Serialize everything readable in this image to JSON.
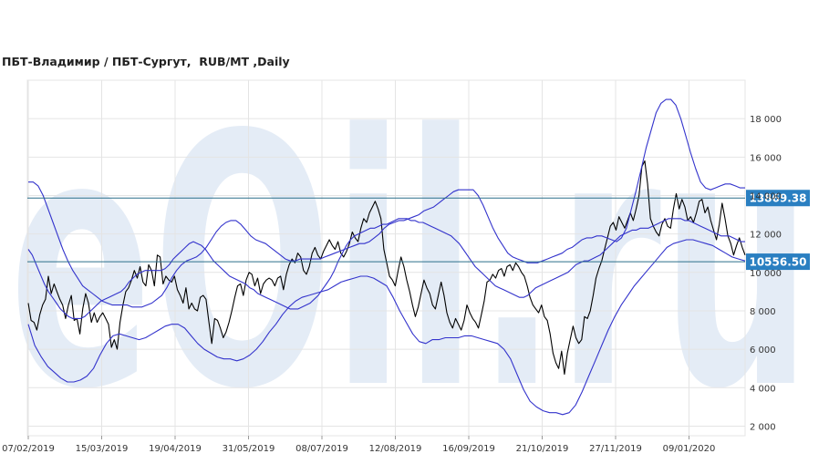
{
  "page": {
    "title": "ПБТ-Владимир / ПБТ-Сургут,  RUB/MT ,Daily",
    "watermark": "eOil.ru"
  },
  "colors": {
    "price": "#000000",
    "bands": "#3333cc",
    "levels": "#2a6f8a",
    "label_bg": "#2a7fc1",
    "grid": "#e4e4e4",
    "watermark": "#e4ecf6"
  },
  "chart_data": {
    "type": "line",
    "title": "ПБТ-Владимир / ПБТ-Сургут,  RUB/MT ,Daily",
    "xlabel": "",
    "ylabel": "",
    "x_ticks": [
      "07/02/2019",
      "15/03/2019",
      "19/04/2019",
      "31/05/2019",
      "08/07/2019",
      "12/08/2019",
      "16/09/2019",
      "21/10/2019",
      "27/11/2019",
      "09/01/2020"
    ],
    "y_ticks": [
      2000,
      4000,
      6000,
      8000,
      10000,
      12000,
      14000,
      16000,
      18000
    ],
    "y_tick_labels": [
      "2 000",
      "4 000",
      "6 000",
      "8 000",
      "10 000",
      "12 000",
      "14 000",
      "16 000",
      "18 000"
    ],
    "ylim": [
      1500,
      20000
    ],
    "grid": true,
    "legend": "none",
    "levels": [
      {
        "value": 13869.38,
        "label": "13869.38"
      },
      {
        "value": 10556.5,
        "label": "10556.50"
      }
    ],
    "series": [
      {
        "role": "price",
        "values": [
          8400,
          7500,
          7400,
          7000,
          7800,
          8300,
          8600,
          9800,
          8900,
          9400,
          9000,
          8600,
          8300,
          7600,
          8300,
          8800,
          7500,
          7600,
          6800,
          8100,
          8900,
          8400,
          7400,
          7900,
          7400,
          7700,
          7900,
          7600,
          7300,
          6100,
          6500,
          6000,
          7400,
          8300,
          9000,
          9200,
          9600,
          10100,
          9700,
          10300,
          9500,
          9300,
          10400,
          10100,
          9300,
          10900,
          10800,
          9400,
          9800,
          9600,
          9500,
          9800,
          9100,
          8800,
          8400,
          9200,
          8100,
          8400,
          8100,
          8000,
          8700,
          8800,
          8600,
          7400,
          6300,
          7600,
          7500,
          7100,
          6600,
          6900,
          7400,
          8000,
          8700,
          9300,
          9400,
          8800,
          9600,
          10000,
          9900,
          9300,
          9700,
          8900,
          9400,
          9600,
          9700,
          9600,
          9300,
          9700,
          9800,
          9100,
          9900,
          10400,
          10700,
          10500,
          11000,
          10800,
          10100,
          9900,
          10300,
          11000,
          11300,
          10900,
          10700,
          11100,
          11400,
          11700,
          11400,
          11200,
          11600,
          11000,
          10800,
          11100,
          11500,
          12100,
          11800,
          11600,
          12300,
          12800,
          12600,
          13100,
          13400,
          13700,
          13300,
          12800,
          11200,
          10500,
          9800,
          9600,
          9300,
          10100,
          10800,
          10300,
          9600,
          9000,
          8300,
          7700,
          8200,
          8900,
          9600,
          9200,
          8900,
          8300,
          8100,
          8800,
          9500,
          8800,
          7900,
          7400,
          7100,
          7600,
          7300,
          7000,
          7500,
          8300,
          7900,
          7600,
          7400,
          7100,
          7800,
          8500,
          9500,
          9600,
          9900,
          9700,
          10100,
          10200,
          9800,
          10300,
          10400,
          10100,
          10500,
          10300,
          10000,
          9800,
          9300,
          8700,
          8300,
          8100,
          7900,
          8300,
          7700,
          7500,
          6800,
          5800,
          5300,
          5000,
          5900,
          4700,
          5800,
          6500,
          7200,
          6600,
          6300,
          6500,
          7700,
          7600,
          8000,
          8800,
          9700,
          10200,
          10600,
          11200,
          11800,
          12400,
          12600,
          12200,
          12900,
          12600,
          12300,
          12700,
          13100,
          12700,
          13300,
          14000,
          15500,
          15800,
          14600,
          12800,
          12400,
          12100,
          11900,
          12500,
          12800,
          12400,
          12300,
          13300,
          14100,
          13300,
          13800,
          13400,
          12700,
          12900,
          12600,
          13100,
          13700,
          13800,
          13100,
          13400,
          12700,
          12200,
          11700,
          12500,
          13600,
          12800,
          11900,
          11500,
          10900,
          11400,
          11800,
          11300,
          10900
        ]
      },
      {
        "role": "upper-band",
        "values": [
          14700,
          14700,
          14500,
          14000,
          13300,
          12600,
          11900,
          11200,
          10600,
          10100,
          9700,
          9300,
          9100,
          8900,
          8700,
          8500,
          8400,
          8300,
          8300,
          8300,
          8300,
          8200,
          8200,
          8200,
          8300,
          8400,
          8600,
          8800,
          9200,
          9700,
          10100,
          10400,
          10600,
          10700,
          10800,
          11000,
          11300,
          11700,
          12100,
          12400,
          12600,
          12700,
          12700,
          12500,
          12200,
          11900,
          11700,
          11600,
          11500,
          11300,
          11100,
          10900,
          10700,
          10600,
          10600,
          10700,
          10700,
          10700,
          10700,
          10700,
          10800,
          10900,
          11000,
          11100,
          11200,
          11300,
          11400,
          11500,
          11500,
          11600,
          11800,
          12000,
          12300,
          12500,
          12600,
          12700,
          12700,
          12800,
          12900,
          13000,
          13200,
          13300,
          13400,
          13600,
          13800,
          14000,
          14200,
          14300,
          14300,
          14300,
          14300,
          14000,
          13500,
          12900,
          12300,
          11800,
          11400,
          11000,
          10800,
          10700,
          10600,
          10500,
          10500,
          10500,
          10600,
          10700,
          10800,
          10900,
          11000,
          11200,
          11300,
          11500,
          11700,
          11800,
          11800,
          11900,
          11900,
          11800,
          11700,
          11600,
          11800,
          12300,
          13300,
          14300,
          15400,
          16500,
          17400,
          18300,
          18800,
          19000,
          19000,
          18700,
          18000,
          17100,
          16200,
          15400,
          14700,
          14400,
          14300,
          14400,
          14500,
          14600,
          14600,
          14500,
          14400,
          14400
        ]
      },
      {
        "role": "middle-band",
        "values": [
          11200,
          10900,
          10400,
          9900,
          9400,
          9000,
          8700,
          8400,
          8100,
          7900,
          7700,
          7600,
          7600,
          7600,
          7700,
          7900,
          8100,
          8300,
          8500,
          8600,
          8700,
          8800,
          8900,
          9000,
          9200,
          9500,
          9700,
          9900,
          10000,
          10100,
          10100,
          10100,
          10100,
          10100,
          10200,
          10400,
          10700,
          10900,
          11100,
          11300,
          11500,
          11600,
          11500,
          11400,
          11200,
          10900,
          10600,
          10400,
          10200,
          10000,
          9800,
          9700,
          9600,
          9500,
          9400,
          9200,
          9100,
          8900,
          8800,
          8700,
          8600,
          8500,
          8400,
          8300,
          8200,
          8100,
          8100,
          8100,
          8200,
          8300,
          8400,
          8600,
          8800,
          9100,
          9400,
          9700,
          10100,
          10600,
          11000,
          11400,
          11700,
          11900,
          12000,
          12100,
          12200,
          12300,
          12300,
          12400,
          12500,
          12500,
          12600,
          12700,
          12800,
          12800,
          12800,
          12700,
          12700,
          12600,
          12600,
          12500,
          12400,
          12300,
          12200,
          12100,
          12000,
          11900,
          11700,
          11500,
          11200,
          10900,
          10600,
          10300,
          10100,
          9900,
          9700,
          9500,
          9300,
          9200,
          9100,
          9000,
          8900,
          8800,
          8700,
          8700,
          8800,
          9000,
          9200,
          9300,
          9400,
          9500,
          9600,
          9700,
          9800,
          9900,
          10000,
          10200,
          10400,
          10500,
          10600,
          10600,
          10700,
          10800,
          10900,
          11100,
          11300,
          11500,
          11700,
          11900,
          12000,
          12100,
          12200,
          12200,
          12300,
          12300,
          12300,
          12400,
          12500,
          12600,
          12700,
          12800,
          12800,
          12800,
          12800,
          12700,
          12700,
          12600,
          12500,
          12400,
          12300,
          12200,
          12100,
          12000,
          11900,
          11900,
          11900,
          11800,
          11700,
          11600,
          11600
        ]
      },
      {
        "role": "lower-band",
        "values": [
          7300,
          6200,
          5600,
          5100,
          4800,
          4500,
          4300,
          4300,
          4400,
          4600,
          5000,
          5700,
          6300,
          6700,
          6800,
          6700,
          6600,
          6500,
          6600,
          6800,
          7000,
          7200,
          7300,
          7300,
          7100,
          6700,
          6300,
          6000,
          5800,
          5600,
          5500,
          5500,
          5400,
          5500,
          5700,
          6000,
          6400,
          6900,
          7300,
          7800,
          8200,
          8500,
          8700,
          8800,
          8900,
          9000,
          9100,
          9300,
          9500,
          9600,
          9700,
          9800,
          9800,
          9700,
          9500,
          9300,
          8700,
          8000,
          7400,
          6800,
          6400,
          6300,
          6500,
          6500,
          6600,
          6600,
          6600,
          6700,
          6700,
          6600,
          6500,
          6400,
          6300,
          6000,
          5500,
          4700,
          3900,
          3300,
          3000,
          2800,
          2700,
          2700,
          2600,
          2700,
          3100,
          3800,
          4600,
          5400,
          6200,
          7000,
          7700,
          8300,
          8800,
          9300,
          9700,
          10100,
          10500,
          10900,
          11300,
          11500,
          11600,
          11700,
          11700,
          11600,
          11500,
          11400,
          11200,
          11000,
          10800,
          10700,
          10600
        ]
      }
    ]
  }
}
